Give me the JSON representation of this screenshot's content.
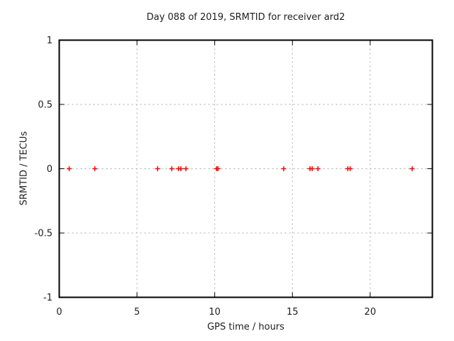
{
  "chart_data": {
    "type": "scatter",
    "title": "Day 088 of 2019, SRMTID for receiver ard2",
    "xlabel": "GPS time / hours",
    "ylabel": "SRMTID / TECUs",
    "xlim": [
      0,
      24
    ],
    "ylim": [
      -1,
      1
    ],
    "xticks": [
      0,
      5,
      10,
      15,
      20
    ],
    "yticks": [
      -1,
      -0.5,
      0,
      0.5,
      1
    ],
    "grid": true,
    "legend_position": "none",
    "series": [
      {
        "name": "SRMTID",
        "marker": "plus",
        "color": "#ff0000",
        "x": [
          0.64,
          2.29,
          6.33,
          7.24,
          7.67,
          7.82,
          8.15,
          10.12,
          10.21,
          14.44,
          16.13,
          16.27,
          16.64,
          18.56,
          18.71,
          22.7
        ],
        "y": [
          0,
          0,
          0,
          0,
          0,
          0,
          0,
          0,
          0,
          0,
          0,
          0,
          0,
          0,
          0,
          0
        ]
      }
    ]
  },
  "colors": {
    "marker": "#ff0000",
    "grid": "#aaaaaa",
    "border": "#000000",
    "text": "#202020",
    "background": "#ffffff"
  }
}
